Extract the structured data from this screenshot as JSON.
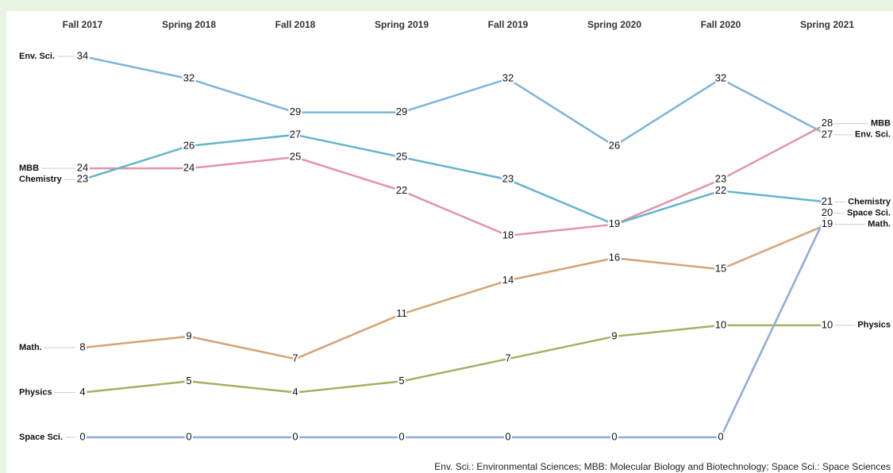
{
  "chart_data": {
    "type": "line",
    "categories": [
      "Fall 2017",
      "Spring 2018",
      "Fall 2018",
      "Spring 2019",
      "Fall 2019",
      "Spring 2020",
      "Fall 2020",
      "Spring 2021"
    ],
    "series": [
      {
        "name": "Env. Sci.",
        "color": "#7db4d8",
        "values": [
          34,
          32,
          29,
          29,
          32,
          26,
          32,
          27
        ]
      },
      {
        "name": "MBB",
        "color": "#e393a6",
        "values": [
          24,
          24,
          25,
          22,
          18,
          19,
          23,
          28
        ]
      },
      {
        "name": "Chemistry",
        "color": "#62b5cc",
        "values": [
          23,
          26,
          27,
          25,
          23,
          19,
          22,
          21
        ]
      },
      {
        "name": "Math.",
        "color": "#d3a474",
        "values": [
          8,
          9,
          7,
          11,
          14,
          16,
          15,
          19
        ]
      },
      {
        "name": "Physics",
        "color": "#a9ad62",
        "values": [
          4,
          5,
          4,
          5,
          7,
          9,
          10,
          10
        ]
      },
      {
        "name": "Space Sci.",
        "color": "#8ea9dc",
        "values": [
          0,
          0,
          0,
          0,
          0,
          0,
          0,
          20
        ]
      }
    ],
    "footnote": "Env. Sci.: Environmental Sciences; MBB: Molecular Biology and Biotechnology; Space Sci.: Space Sciences"
  }
}
